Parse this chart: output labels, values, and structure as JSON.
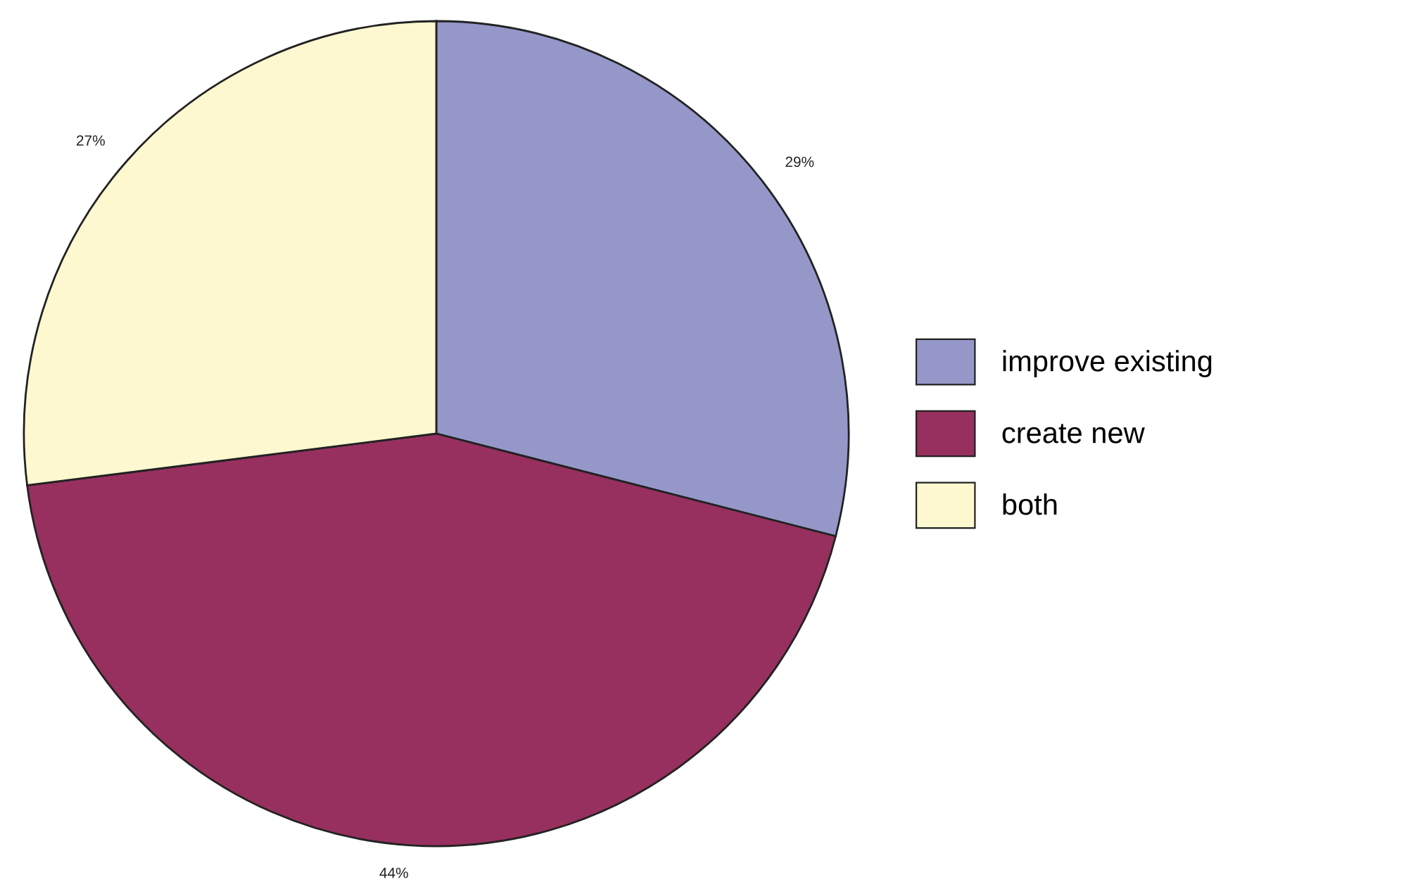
{
  "chart_data": {
    "type": "pie",
    "categories": [
      "improve existing",
      "create new",
      "both"
    ],
    "values": [
      29,
      44,
      27
    ],
    "colors": [
      "#9597c9",
      "#97305f",
      "#fdf8cf"
    ],
    "value_labels": [
      "29%",
      "44%",
      "27%"
    ],
    "legend": "right"
  }
}
